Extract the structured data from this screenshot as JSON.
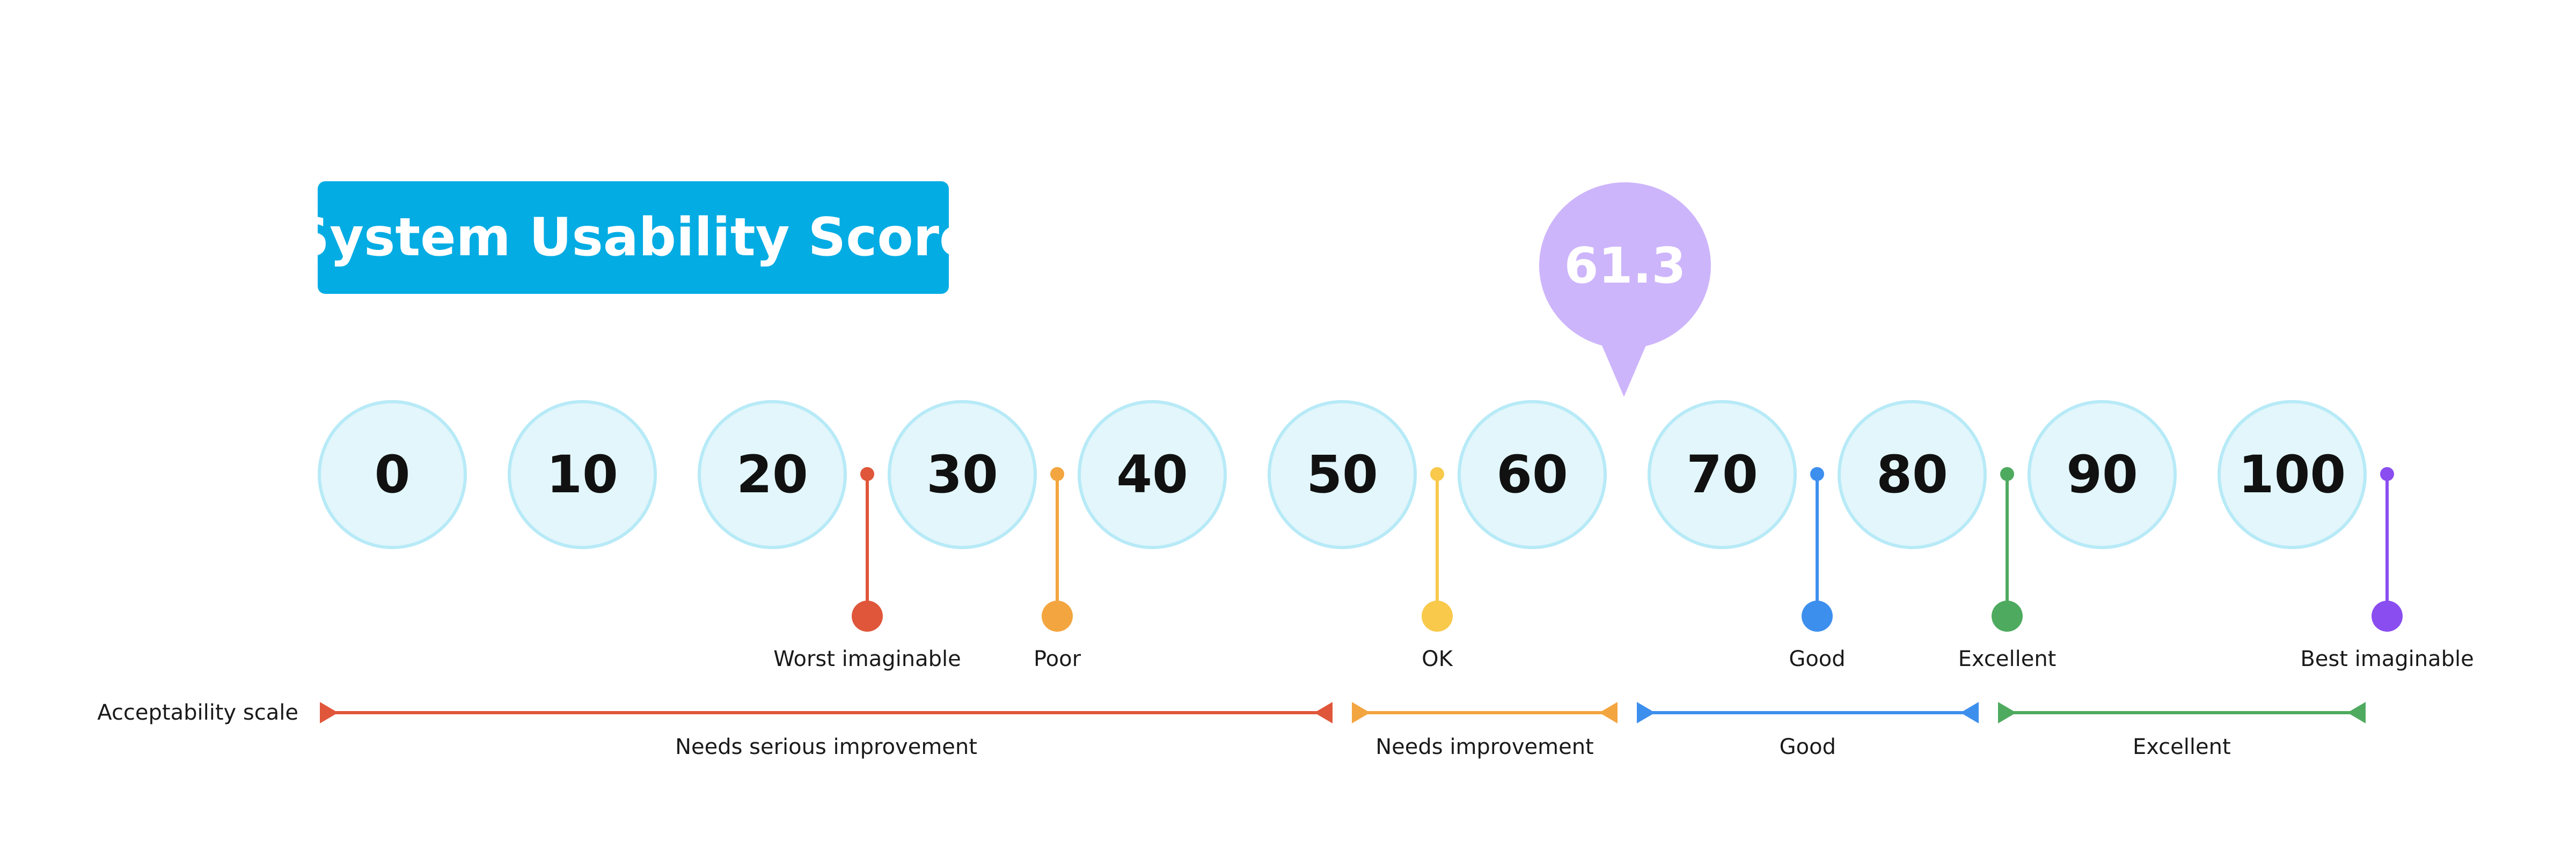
{
  "title": "System Usability Score",
  "score": "61.3",
  "ticks": [
    "0",
    "10",
    "20",
    "30",
    "40",
    "50",
    "60",
    "70",
    "80",
    "90",
    "100"
  ],
  "adjective_markers": [
    {
      "label": "Worst imaginable",
      "value": 25,
      "color": "#E0563A"
    },
    {
      "label": "Poor",
      "value": 35,
      "color": "#F3A53F"
    },
    {
      "label": "OK",
      "value": 55,
      "color": "#F8C94B"
    },
    {
      "label": "Good",
      "value": 75,
      "color": "#3D8FEE"
    },
    {
      "label": "Excellent",
      "value": 85,
      "color": "#4EAA5F"
    },
    {
      "label": "Best imaginable",
      "value": 105,
      "color": "#8A4DF0"
    }
  ],
  "acceptability": {
    "label": "Acceptability scale",
    "segments": [
      {
        "label": "Needs serious improvement",
        "from": 0,
        "to": 50,
        "color": "#E0563A"
      },
      {
        "label": "Needs improvement",
        "from": 50,
        "to": 65,
        "color": "#F3A53F"
      },
      {
        "label": "Good",
        "from": 65,
        "to": 84,
        "color": "#3D8FEE"
      },
      {
        "label": "Excellent",
        "from": 84,
        "to": 100,
        "color": "#4EAA5F"
      }
    ]
  }
}
